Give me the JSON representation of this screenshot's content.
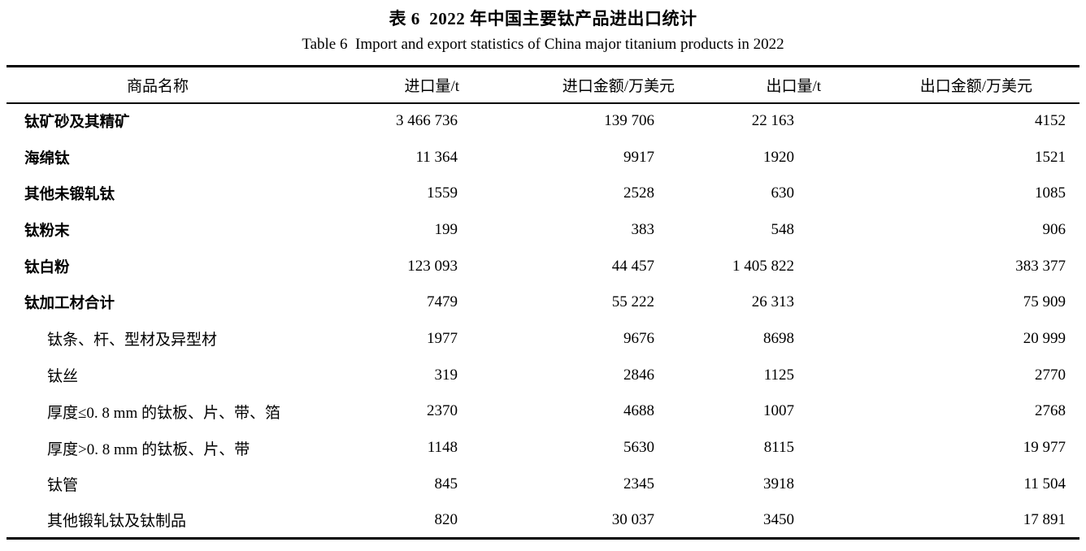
{
  "table": {
    "title_zh": "表 6  2022 年中国主要钛产品进出口统计",
    "title_en": "Table 6  Import and export statistics of China major titanium products in 2022",
    "columns": [
      "商品名称",
      "进口量/t",
      "进口金额/万美元",
      "出口量/t",
      "出口金额/万美元"
    ],
    "rows": [
      {
        "name": "钛矿砂及其精矿",
        "bold": true,
        "indent": false,
        "values": [
          "3 466 736",
          "139 706",
          "22 163",
          "4152"
        ]
      },
      {
        "name": "海绵钛",
        "bold": true,
        "indent": false,
        "values": [
          "11 364",
          "9917",
          "1920",
          "1521"
        ]
      },
      {
        "name": "其他未锻轧钛",
        "bold": true,
        "indent": false,
        "values": [
          "1559",
          "2528",
          "630",
          "1085"
        ]
      },
      {
        "name": "钛粉末",
        "bold": true,
        "indent": false,
        "values": [
          "199",
          "383",
          "548",
          "906"
        ]
      },
      {
        "name": "钛白粉",
        "bold": true,
        "indent": false,
        "values": [
          "123 093",
          "44 457",
          "1 405 822",
          "383 377"
        ]
      },
      {
        "name": "钛加工材合计",
        "bold": true,
        "indent": false,
        "values": [
          "7479",
          "55 222",
          "26 313",
          "75 909"
        ]
      },
      {
        "name": "钛条、杆、型材及异型材",
        "bold": false,
        "indent": true,
        "values": [
          "1977",
          "9676",
          "8698",
          "20 999"
        ]
      },
      {
        "name": "钛丝",
        "bold": false,
        "indent": true,
        "values": [
          "319",
          "2846",
          "1125",
          "2770"
        ]
      },
      {
        "name": "厚度≤0. 8 mm 的钛板、片、带、箔",
        "bold": false,
        "indent": true,
        "values": [
          "2370",
          "4688",
          "1007",
          "2768"
        ]
      },
      {
        "name": "厚度>0. 8 mm 的钛板、片、带",
        "bold": false,
        "indent": true,
        "values": [
          "1148",
          "5630",
          "8115",
          "19 977"
        ]
      },
      {
        "name": "钛管",
        "bold": false,
        "indent": true,
        "values": [
          "845",
          "2345",
          "3918",
          "11 504"
        ]
      },
      {
        "name": "其他锻轧钛及钛制品",
        "bold": false,
        "indent": true,
        "values": [
          "820",
          "30 037",
          "3450",
          "17 891"
        ]
      }
    ]
  }
}
